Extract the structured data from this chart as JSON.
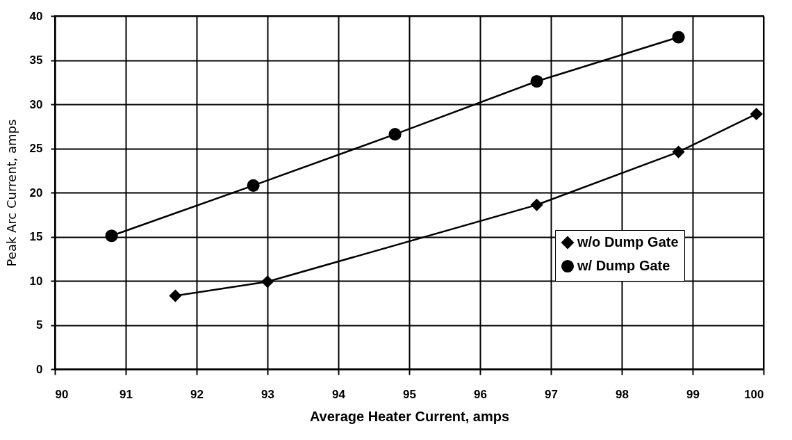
{
  "chart_data": {
    "type": "line",
    "xlabel": "Average Heater Current, amps",
    "ylabel": "Peak Arc Current, amps",
    "xlim": [
      90,
      100
    ],
    "xticks": [
      90,
      91,
      92,
      93,
      94,
      95,
      96,
      97,
      98,
      99,
      100
    ],
    "ylim": [
      0,
      40
    ],
    "yticks": [
      0,
      5,
      10,
      15,
      20,
      25,
      30,
      35,
      40
    ],
    "grid": true,
    "legend": "right",
    "line_style": "solid",
    "series": [
      {
        "name": "w/o Dump Gate",
        "color": "#000000",
        "marker": "diamond",
        "x": [
          91.7,
          93.0,
          96.8,
          98.8,
          99.9
        ],
        "values": [
          8.3,
          9.9,
          18.6,
          24.6,
          28.9
        ]
      },
      {
        "name": "w/ Dump Gate",
        "color": "#000000",
        "marker": "circle",
        "x": [
          90.8,
          92.8,
          94.8,
          96.8,
          98.8
        ],
        "values": [
          15.1,
          20.8,
          26.6,
          32.6,
          37.6
        ]
      }
    ]
  }
}
